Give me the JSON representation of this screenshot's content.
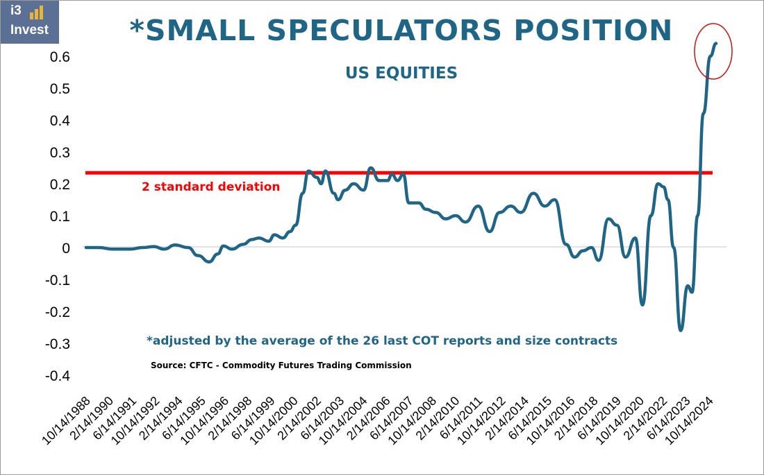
{
  "logo": {
    "brand_top": "i3",
    "brand_bottom": "Invest"
  },
  "colors": {
    "line": "#1f6585",
    "threshold": "#ff0000",
    "title": "#1f6585",
    "highlight_circle": "#cc1111",
    "logo_bg": "#5b7094"
  },
  "chart_data": {
    "type": "line",
    "title": "*SMALL SPECULATORS POSITION",
    "subtitle": "US EQUITIES",
    "note": "*adjusted by the average of the 26 last COT reports and size contracts",
    "source": "Source: CFTC - Commodity Futures Trading Commission",
    "xlabel": "",
    "ylabel": "",
    "ylim": [
      -0.4,
      0.6
    ],
    "yticks": [
      "0.6",
      "0.5",
      "0.4",
      "0.3",
      "0.2",
      "0.1",
      "0",
      "-0.1",
      "-0.2",
      "-0.3",
      "-0.4"
    ],
    "xticks": [
      "10/14/1988",
      "2/14/1990",
      "6/14/1991",
      "10/14/1992",
      "2/14/1994",
      "6/14/1995",
      "10/14/1996",
      "2/14/1998",
      "6/14/1999",
      "10/14/2000",
      "2/14/2002",
      "6/14/2003",
      "10/14/2004",
      "2/14/2006",
      "6/14/2007",
      "10/14/2008",
      "2/14/2010",
      "6/14/2011",
      "10/14/2012",
      "2/14/2014",
      "6/14/2015",
      "10/14/2016",
      "2/14/2018",
      "6/14/2019",
      "10/14/2020",
      "2/14/2022",
      "6/14/2023",
      "10/14/2024"
    ],
    "threshold": {
      "value": 0.23,
      "label": "2 standard deviation"
    },
    "grid": false,
    "series": [
      {
        "values": [
          [
            "1988-06",
            0.0
          ],
          [
            "1989-03",
            0.0
          ],
          [
            "1990-01",
            -0.005
          ],
          [
            "1991-01",
            -0.005
          ],
          [
            "1991-10",
            0.0
          ],
          [
            "1992-06",
            0.003
          ],
          [
            "1993-01",
            -0.005
          ],
          [
            "1993-09",
            0.008
          ],
          [
            "1994-06",
            0.0
          ],
          [
            "1995-01",
            -0.025
          ],
          [
            "1995-09",
            -0.045
          ],
          [
            "1996-03",
            -0.02
          ],
          [
            "1996-07",
            0.005
          ],
          [
            "1997-01",
            -0.005
          ],
          [
            "1997-09",
            0.01
          ],
          [
            "1998-03",
            0.025
          ],
          [
            "1998-08",
            0.03
          ],
          [
            "1999-03",
            0.02
          ],
          [
            "1999-07",
            0.04
          ],
          [
            "2000-01",
            0.03
          ],
          [
            "2000-06",
            0.05
          ],
          [
            "2000-10",
            0.07
          ],
          [
            "2001-03",
            0.17
          ],
          [
            "2001-07",
            0.24
          ],
          [
            "2002-01",
            0.22
          ],
          [
            "2002-04",
            0.2
          ],
          [
            "2002-07",
            0.24
          ],
          [
            "2003-01",
            0.17
          ],
          [
            "2003-04",
            0.15
          ],
          [
            "2003-09",
            0.18
          ],
          [
            "2004-03",
            0.2
          ],
          [
            "2004-10",
            0.18
          ],
          [
            "2005-03",
            0.25
          ],
          [
            "2005-09",
            0.21
          ],
          [
            "2006-03",
            0.21
          ],
          [
            "2006-06",
            0.23
          ],
          [
            "2006-10",
            0.21
          ],
          [
            "2007-02",
            0.23
          ],
          [
            "2007-06",
            0.14
          ],
          [
            "2008-01",
            0.14
          ],
          [
            "2008-06",
            0.12
          ],
          [
            "2009-01",
            0.11
          ],
          [
            "2009-08",
            0.09
          ],
          [
            "2010-03",
            0.1
          ],
          [
            "2010-10",
            0.08
          ],
          [
            "2011-07",
            0.13
          ],
          [
            "2012-03",
            0.05
          ],
          [
            "2012-10",
            0.11
          ],
          [
            "2013-06",
            0.13
          ],
          [
            "2014-01",
            0.11
          ],
          [
            "2014-10",
            0.17
          ],
          [
            "2015-06",
            0.13
          ],
          [
            "2016-01",
            0.15
          ],
          [
            "2016-09",
            0.01
          ],
          [
            "2017-03",
            -0.03
          ],
          [
            "2017-09",
            -0.01
          ],
          [
            "2018-03",
            0.0
          ],
          [
            "2018-08",
            -0.04
          ],
          [
            "2019-03",
            0.09
          ],
          [
            "2019-09",
            0.07
          ],
          [
            "2020-03",
            -0.03
          ],
          [
            "2020-10",
            0.03
          ],
          [
            "2021-03",
            -0.18
          ],
          [
            "2021-09",
            0.1
          ],
          [
            "2022-02",
            0.2
          ],
          [
            "2022-06",
            0.19
          ],
          [
            "2022-09",
            0.15
          ],
          [
            "2023-01",
            0.0
          ],
          [
            "2023-06",
            -0.26
          ],
          [
            "2023-11",
            -0.12
          ],
          [
            "2024-02",
            -0.14
          ],
          [
            "2024-06",
            0.1
          ],
          [
            "2024-10",
            0.42
          ],
          [
            "2025-03",
            0.6
          ],
          [
            "2025-07",
            0.64
          ]
        ]
      }
    ]
  }
}
